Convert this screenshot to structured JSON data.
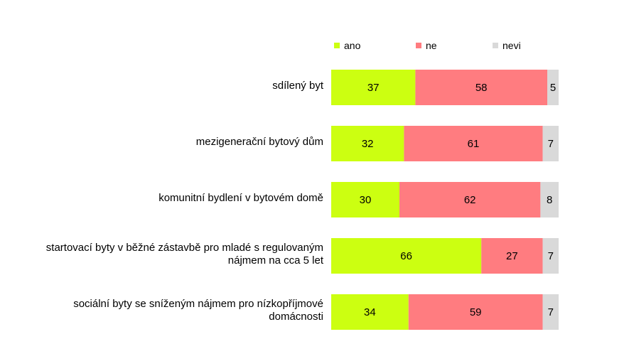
{
  "chart_data": {
    "type": "bar",
    "orientation": "horizontal",
    "stacked": true,
    "normalized": true,
    "categories": [
      "sdílený byt",
      "mezigenerační bytový dům",
      "komunitní bydlení v bytovém domě",
      "startovací byty v běžné zástavbě pro mladé s regulovaným nájmem na cca 5 let",
      "sociální byty se sníženým nájmem pro nízkopříjmové domácnosti"
    ],
    "series": [
      {
        "name": "ano",
        "color": "#ccff11",
        "values": [
          37,
          32,
          30,
          66,
          34
        ]
      },
      {
        "name": "ne",
        "color": "#ff7c80",
        "values": [
          58,
          61,
          62,
          27,
          59
        ]
      },
      {
        "name": "nevi",
        "color": "#d9d9d9",
        "values": [
          5,
          7,
          8,
          7,
          7
        ]
      }
    ],
    "xlim": [
      0,
      100
    ],
    "grid": false,
    "legend": "top"
  }
}
